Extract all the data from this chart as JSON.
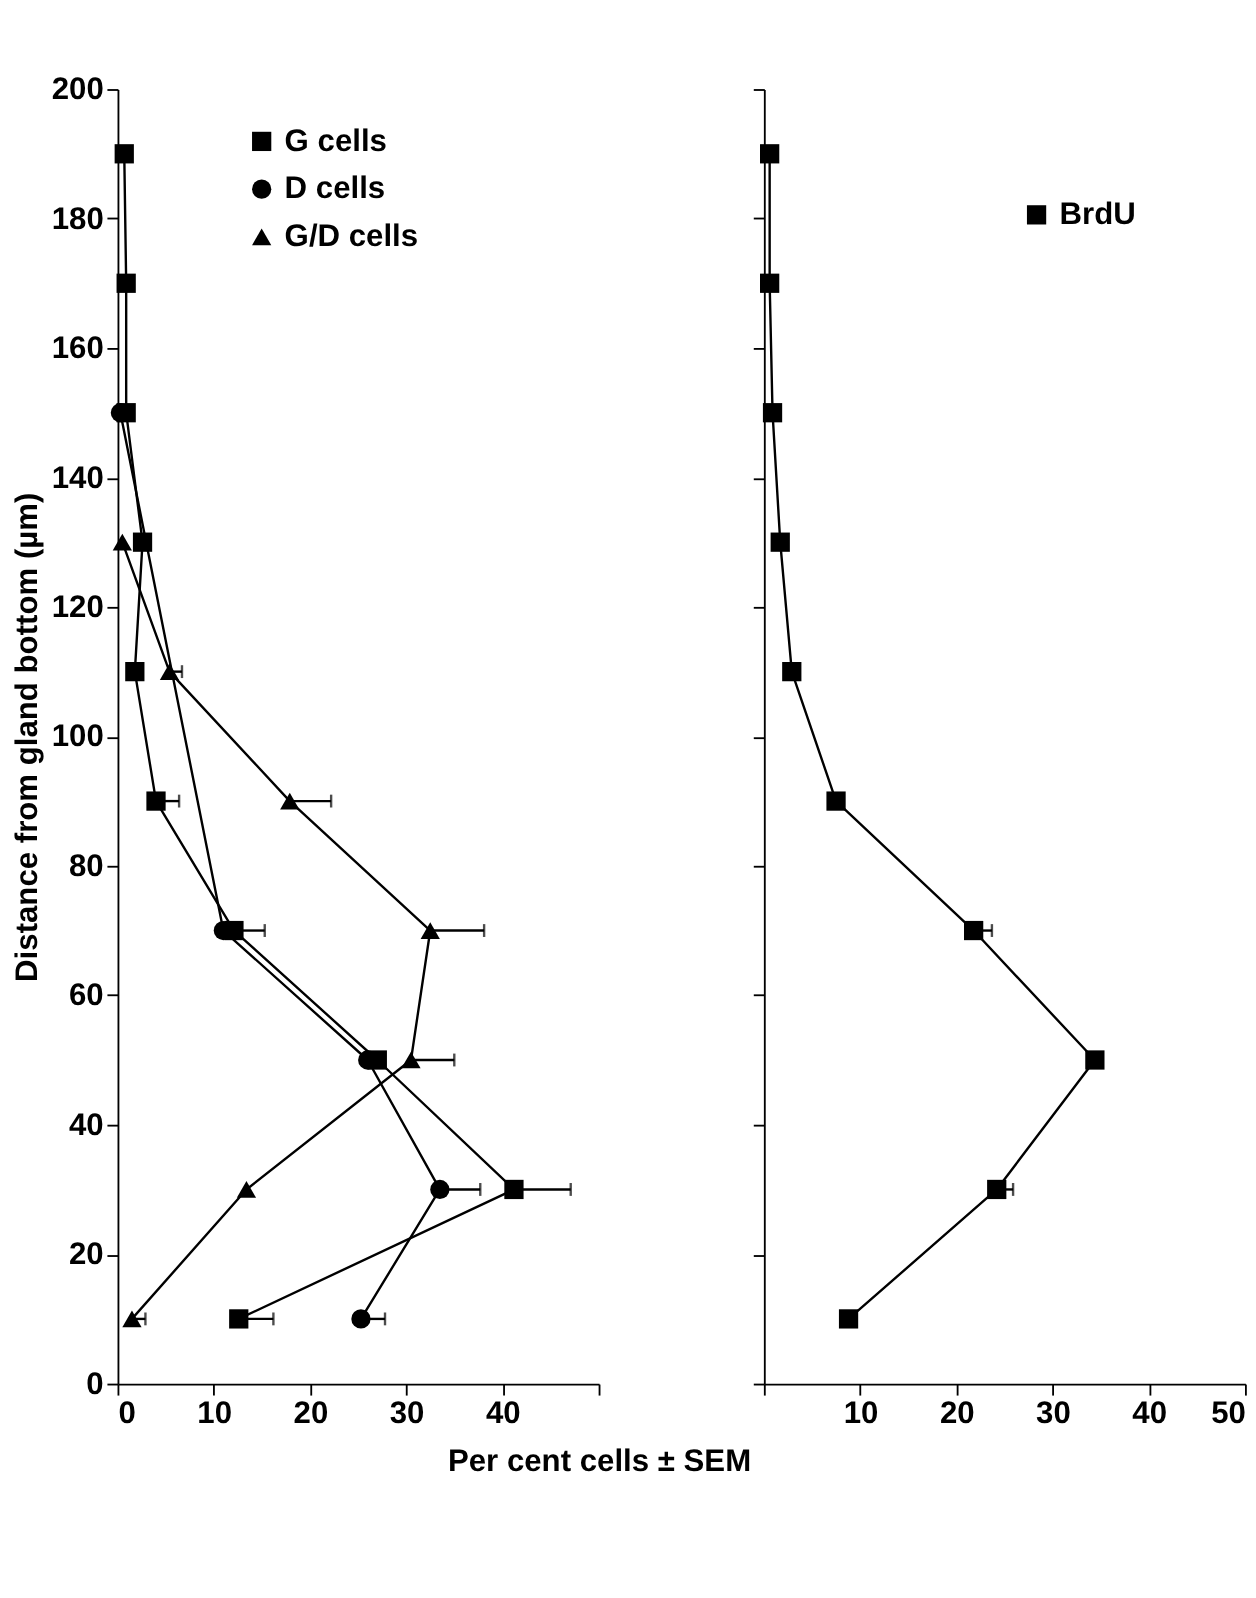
{
  "chart_data": [
    {
      "type": "line",
      "orientation": "horizontal",
      "ylabel": "Distance from gland bottom (µm)",
      "xlabel": "Per cent cells ± SEM",
      "x": [
        10,
        30,
        50,
        70,
        90,
        110,
        130,
        150,
        170,
        190
      ],
      "xlim": [
        0,
        50
      ],
      "xticks": [
        0,
        10,
        20,
        30,
        40,
        {
          "value": 50,
          "label": null
        }
      ],
      "ylim": [
        0,
        200
      ],
      "yticks": [
        0,
        20,
        40,
        60,
        80,
        100,
        120,
        140,
        160,
        180,
        200
      ],
      "legend": "top",
      "grid": false,
      "series": [
        {
          "name": "G cells",
          "color": "#000000",
          "marker": "square",
          "values": [
            12.6,
            41.2,
            27.0,
            12.1,
            4.0,
            1.8,
            2.6,
            0.9,
            0.9,
            0.7
          ],
          "errors": [
            [
              12.6,
              16.2
            ],
            [
              41.2,
              47.1
            ],
            null,
            [
              12.1,
              15.3
            ],
            [
              4.0,
              6.4
            ],
            null,
            null,
            null,
            null,
            null
          ]
        },
        {
          "name": "D cells",
          "color": "#000000",
          "marker": "circle",
          "values": [
            25.3,
            33.5,
            26.0,
            11.0,
            null,
            null,
            null,
            0.3,
            null,
            null
          ],
          "errors": [
            [
              25.3,
              27.8
            ],
            [
              33.5,
              37.7
            ],
            null,
            null,
            null,
            null,
            null,
            null,
            null,
            null
          ]
        },
        {
          "name": "G/D cells",
          "color": "#000000",
          "marker": "triangle",
          "values": [
            1.5,
            13.4,
            30.5,
            32.5,
            17.9,
            5.4,
            0.5,
            null,
            null,
            null
          ],
          "errors": [
            [
              1.5,
              2.9
            ],
            null,
            [
              30.5,
              35.0
            ],
            [
              32.5,
              38.1
            ],
            [
              17.9,
              22.2
            ],
            [
              5.4,
              6.7
            ],
            null,
            null,
            null,
            null
          ]
        }
      ]
    },
    {
      "type": "line",
      "orientation": "horizontal",
      "x": [
        10,
        30,
        50,
        70,
        90,
        110,
        130,
        150,
        170,
        190
      ],
      "xlim": [
        0,
        50
      ],
      "xticks": [
        {
          "value": 0,
          "label": null
        },
        10,
        20,
        30,
        40,
        50
      ],
      "ylim": [
        0,
        200
      ],
      "yticks": [
        0,
        20,
        40,
        60,
        80,
        100,
        120,
        140,
        160,
        180,
        200
      ],
      "tick_labels": "x",
      "legend": "top right",
      "grid": false,
      "series": [
        {
          "name": "BrdU",
          "color": "#000000",
          "marker": "square",
          "values": [
            8.8,
            24.2,
            34.4,
            21.8,
            7.5,
            2.9,
            1.7,
            0.9,
            0.6,
            0.6
          ],
          "errors": [
            null,
            [
              24.2,
              25.9
            ],
            null,
            [
              21.8,
              23.7
            ],
            null,
            null,
            null,
            null,
            null,
            null
          ]
        }
      ]
    }
  ]
}
